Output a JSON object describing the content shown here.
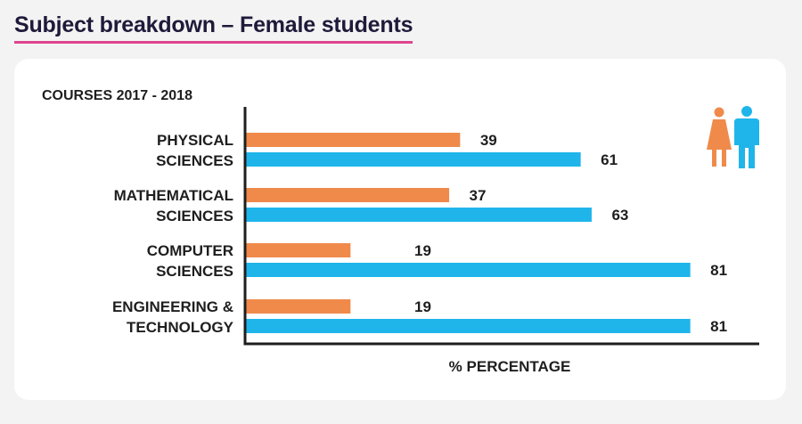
{
  "heading": "Subject breakdown – Female students",
  "chart_data": {
    "type": "bar",
    "title": "COURSES 2017 - 2018",
    "xlabel": "% PERCENTAGE",
    "ylabel": "",
    "xlim": [
      0,
      100
    ],
    "categories": [
      [
        "PHYSICAL",
        "SCIENCES"
      ],
      [
        "MATHEMATICAL",
        "SCIENCES"
      ],
      [
        "COMPUTER",
        "SCIENCES"
      ],
      [
        "ENGINEERING &",
        "TECHNOLOGY"
      ]
    ],
    "series": [
      {
        "name": "Female",
        "color": "#f08a4b",
        "values": [
          39,
          37,
          19,
          19
        ]
      },
      {
        "name": "Male",
        "color": "#1fb5ea",
        "values": [
          61,
          63,
          81,
          81
        ]
      }
    ],
    "legend_icons": [
      "female-icon",
      "male-icon"
    ],
    "legend_position": "top-right"
  }
}
